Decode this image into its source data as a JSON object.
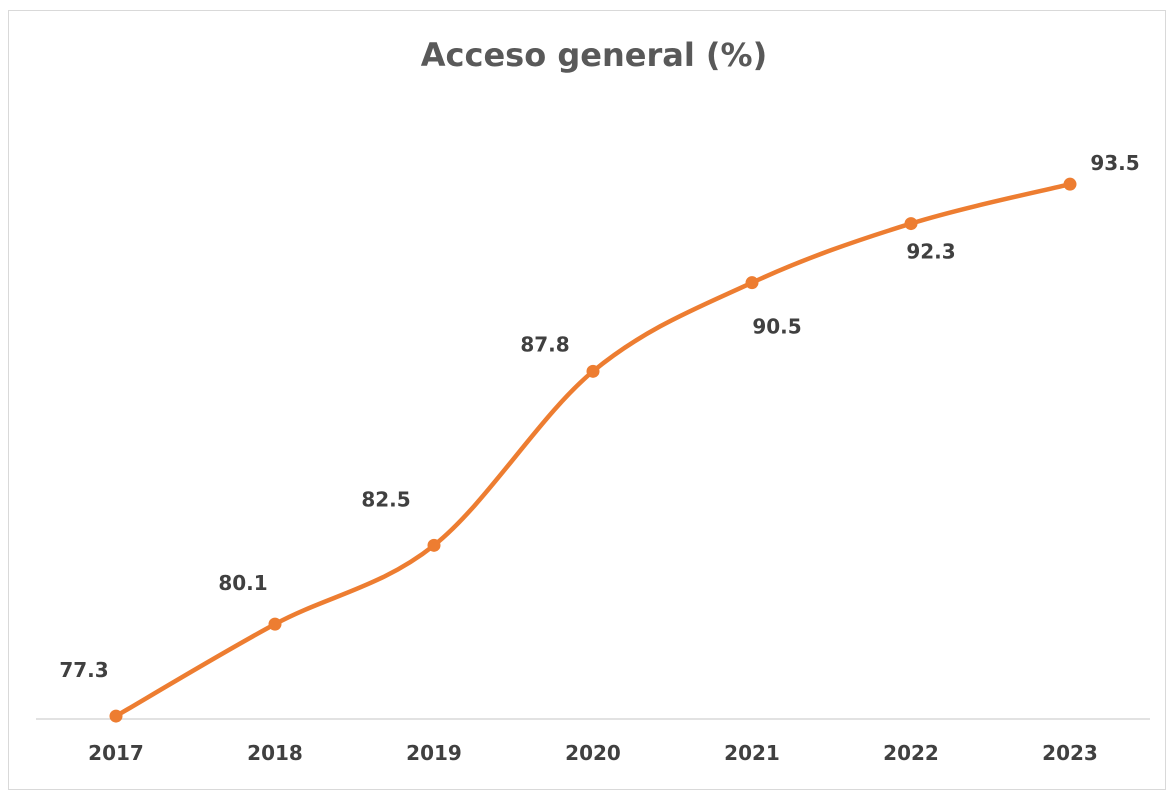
{
  "chart_data": {
    "type": "line",
    "title": "Acceso general (%)",
    "xlabel": "",
    "ylabel": "",
    "categories": [
      "2017",
      "2018",
      "2019",
      "2020",
      "2021",
      "2022",
      "2023"
    ],
    "series": [
      {
        "values": [
          77.3,
          80.1,
          82.5,
          87.8,
          90.5,
          92.3,
          93.5
        ],
        "color": "#ED7D31",
        "smooth": true,
        "markers": true
      }
    ],
    "ylim": [
      74.5,
      98.5
    ],
    "grid": false,
    "legend": "none",
    "data_labels": true
  }
}
